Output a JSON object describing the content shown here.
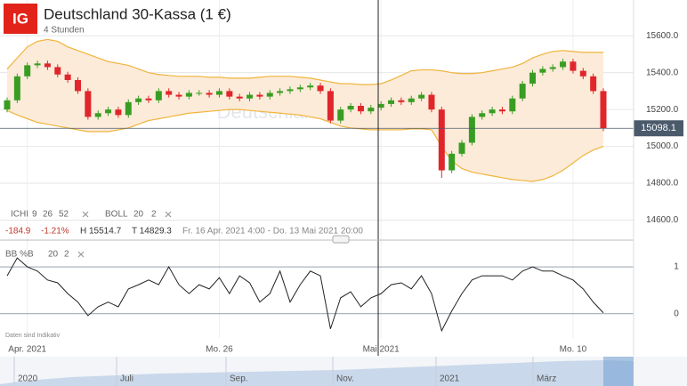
{
  "header": {
    "logo": "IG",
    "title": "Deutschland 30-Kassa (1 €)",
    "interval": "4 Stunden",
    "watermark": "Deutschland 30-Kassa (1 €)"
  },
  "legend": {
    "ichi": [
      "ICHI",
      "9",
      "26",
      "52"
    ],
    "boll": [
      "BOLL",
      "20",
      "2"
    ],
    "bbpb": [
      "BB %B",
      "20",
      "2"
    ]
  },
  "info": {
    "change": "-184.9",
    "change_pct": "-1.21%",
    "high": "H 15514.7",
    "low": "T 14829.3",
    "range": "Fr. 16 Apr. 2021 4:00 - Do. 13 Mai 2021 20:00"
  },
  "note": "Daten sind Indikativ",
  "navigator": {
    "labels": [
      "2020",
      "Juli",
      "Sep.",
      "Nov.",
      "2021",
      "März"
    ]
  },
  "chart_data": [
    {
      "type": "candlestick",
      "categories": [
        null,
        null,
        "Apr. 2021",
        null,
        null,
        null,
        null,
        null,
        null,
        null,
        null,
        null,
        null,
        null,
        null,
        null,
        null,
        null,
        null,
        null,
        null,
        "Mo. 26",
        null,
        null,
        null,
        null,
        null,
        null,
        null,
        null,
        null,
        null,
        null,
        null,
        null,
        null,
        null,
        "Mai 2021",
        null,
        null,
        null,
        null,
        null,
        null,
        null,
        null,
        null,
        null,
        null,
        null,
        null,
        null,
        null,
        null,
        null,
        null,
        "Mo. 10",
        null,
        null,
        null
      ],
      "open": [
        15200,
        15250,
        15380,
        15440,
        15450,
        15430,
        15390,
        15360,
        15300,
        15160,
        15180,
        15200,
        15170,
        15240,
        15260,
        15250,
        15300,
        15280,
        15270,
        15290,
        15290,
        15280,
        15300,
        15270,
        15260,
        15280,
        15270,
        15290,
        15300,
        15310,
        15320,
        15330,
        15300,
        15140,
        15200,
        15220,
        15190,
        15210,
        15230,
        15250,
        15240,
        15260,
        15280,
        15200,
        14870,
        14960,
        15020,
        15160,
        15180,
        15200,
        15190,
        15260,
        15340,
        15400,
        15420,
        15430,
        15460,
        15410,
        15380,
        15300
      ],
      "high": [
        15265,
        15395,
        15455,
        15465,
        15465,
        15445,
        15405,
        15375,
        15315,
        15195,
        15215,
        15215,
        15255,
        15275,
        15275,
        15315,
        15315,
        15295,
        15305,
        15305,
        15305,
        15315,
        15315,
        15285,
        15295,
        15295,
        15305,
        15315,
        15325,
        15335,
        15345,
        15345,
        15315,
        15215,
        15235,
        15235,
        15225,
        15245,
        15265,
        15265,
        15275,
        15295,
        15295,
        15215,
        14975,
        15035,
        15175,
        15195,
        15215,
        15215,
        15275,
        15355,
        15415,
        15435,
        15445,
        15475,
        15475,
        15425,
        15395,
        15315
      ],
      "low": [
        15185,
        15235,
        15365,
        15425,
        15415,
        15375,
        15345,
        15285,
        15145,
        15145,
        15165,
        15155,
        15155,
        15225,
        15235,
        15235,
        15265,
        15255,
        15255,
        15275,
        15265,
        15265,
        15255,
        15245,
        15245,
        15255,
        15255,
        15275,
        15285,
        15295,
        15305,
        15285,
        15125,
        15125,
        15185,
        15175,
        15175,
        15195,
        15215,
        15225,
        15225,
        15245,
        15185,
        14829.3,
        14855,
        14945,
        15005,
        15145,
        15165,
        15175,
        15175,
        15245,
        15325,
        15385,
        15405,
        15415,
        15395,
        15365,
        15285,
        15083
      ],
      "close": [
        15250,
        15380,
        15440,
        15450,
        15430,
        15390,
        15360,
        15300,
        15160,
        15180,
        15200,
        15170,
        15240,
        15260,
        15250,
        15300,
        15280,
        15270,
        15290,
        15290,
        15280,
        15300,
        15270,
        15260,
        15280,
        15270,
        15290,
        15300,
        15310,
        15320,
        15330,
        15300,
        15140,
        15200,
        15220,
        15190,
        15210,
        15230,
        15250,
        15240,
        15260,
        15280,
        15200,
        14870,
        14960,
        15020,
        15160,
        15180,
        15200,
        15190,
        15260,
        15340,
        15400,
        15420,
        15430,
        15460,
        15410,
        15380,
        15300,
        15098.1
      ],
      "up_color": "#3a9d23",
      "down_color": "#e0262b",
      "bollinger": {
        "color": "#f0b43c",
        "fill": "#fcebd9",
        "upper": [
          15420,
          15480,
          15540,
          15570,
          15580,
          15570,
          15540,
          15520,
          15500,
          15480,
          15460,
          15450,
          15440,
          15420,
          15400,
          15390,
          15385,
          15380,
          15380,
          15380,
          15375,
          15375,
          15370,
          15370,
          15370,
          15375,
          15380,
          15380,
          15380,
          15375,
          15370,
          15360,
          15350,
          15340,
          15340,
          15335,
          15335,
          15340,
          15360,
          15385,
          15410,
          15415,
          15415,
          15410,
          15400,
          15395,
          15395,
          15400,
          15410,
          15420,
          15430,
          15450,
          15480,
          15500,
          15515,
          15520,
          15515,
          15510,
          15510,
          15510
        ],
        "lower": [
          15195,
          15170,
          15150,
          15130,
          15120,
          15110,
          15100,
          15090,
          15080,
          15080,
          15080,
          15090,
          15100,
          15120,
          15140,
          15150,
          15160,
          15170,
          15180,
          15185,
          15190,
          15195,
          15200,
          15200,
          15195,
          15190,
          15185,
          15180,
          15175,
          15170,
          15160,
          15150,
          15130,
          15110,
          15100,
          15095,
          15090,
          15090,
          15090,
          15090,
          15095,
          15095,
          15090,
          15000,
          14920,
          14880,
          14860,
          14850,
          14840,
          14830,
          14820,
          14815,
          14810,
          14820,
          14840,
          14870,
          14910,
          14950,
          14980,
          15000
        ]
      },
      "ylim": [
        14530,
        15770
      ],
      "yticks": [
        {
          "value": 14600,
          "label": "14600.0"
        },
        {
          "value": 14800,
          "label": "14800.0"
        },
        {
          "value": 15000,
          "label": "15000.0"
        },
        {
          "value": 15200,
          "label": "15200.0"
        },
        {
          "value": 15400,
          "label": "15400.0"
        },
        {
          "value": 15600,
          "label": "15600.0"
        }
      ],
      "grid": true
    },
    {
      "type": "line",
      "color": "#222",
      "values": [
        0.81,
        1.19,
        1.0,
        0.91,
        0.72,
        0.66,
        0.43,
        0.25,
        -0.04,
        0.15,
        0.25,
        0.15,
        0.53,
        0.62,
        0.72,
        0.62,
        1.0,
        0.62,
        0.43,
        0.62,
        0.53,
        0.77,
        0.43,
        0.81,
        0.66,
        0.25,
        0.43,
        0.91,
        0.25,
        0.62,
        0.91,
        0.81,
        -0.32,
        0.34,
        0.47,
        0.15,
        0.34,
        0.43,
        0.62,
        0.66,
        0.53,
        0.81,
        0.43,
        -0.36,
        0.06,
        0.43,
        0.72,
        0.81,
        0.81,
        0.81,
        0.72,
        0.91,
        1.0,
        0.91,
        0.91,
        0.81,
        0.72,
        0.53,
        0.25,
        0.02
      ],
      "ylim": [
        -0.42,
        1.38
      ],
      "yticks": [
        0,
        1
      ],
      "grid": true
    }
  ]
}
